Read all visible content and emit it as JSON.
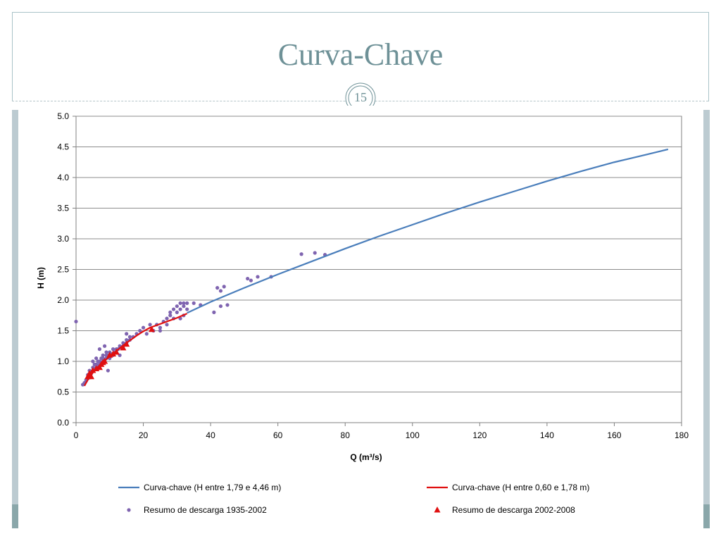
{
  "slide": {
    "title": "Curva-Chave",
    "page_number": "15",
    "accent_color": "#6e9197"
  },
  "chart_data": {
    "type": "scatter",
    "xlabel": "Q (m³/s)",
    "ylabel": "H (m)",
    "xlim": [
      0,
      180
    ],
    "ylim": [
      0,
      5
    ],
    "x_ticks": [
      "0",
      "20",
      "40",
      "60",
      "80",
      "100",
      "120",
      "140",
      "160",
      "180"
    ],
    "y_ticks": [
      "0.0",
      "0.5",
      "1.0",
      "1.5",
      "2.0",
      "2.5",
      "3.0",
      "3.5",
      "4.0",
      "4.5",
      "5.0"
    ],
    "grid": "horizontal",
    "legend_position": "bottom",
    "series": [
      {
        "name": "Curva-chave (H entre 1,79 e 4,46 m)",
        "kind": "line",
        "color": "#4a7ebb",
        "x": [
          33,
          40,
          50,
          60,
          70,
          80,
          90,
          100,
          110,
          120,
          130,
          140,
          150,
          160,
          170,
          176
        ],
        "y": [
          1.79,
          1.97,
          2.2,
          2.42,
          2.63,
          2.84,
          3.04,
          3.23,
          3.42,
          3.6,
          3.77,
          3.94,
          4.1,
          4.25,
          4.38,
          4.46
        ]
      },
      {
        "name": "Curva-chave (H entre 0,60 e 1,78 m)",
        "kind": "line",
        "color": "#e01010",
        "x": [
          2.5,
          4,
          6,
          8,
          10,
          12,
          14,
          16,
          18,
          20,
          22,
          26,
          30,
          33
        ],
        "y": [
          0.6,
          0.75,
          0.88,
          0.99,
          1.08,
          1.17,
          1.26,
          1.34,
          1.42,
          1.49,
          1.55,
          1.63,
          1.71,
          1.78
        ]
      },
      {
        "name": "Resumo de descarga 1935-2002",
        "kind": "scatter",
        "color": "#7f64b0",
        "x": [
          0,
          2,
          2.5,
          3,
          3,
          3.5,
          3.5,
          4,
          4,
          4,
          4.5,
          5,
          5,
          5,
          5.5,
          5.5,
          6,
          6,
          6,
          6.5,
          6.5,
          7,
          7,
          7,
          7.5,
          7.5,
          8,
          8,
          8,
          8.5,
          8.5,
          9,
          9,
          9,
          9.5,
          9.5,
          10,
          10,
          10,
          10.5,
          11,
          11,
          11.5,
          12,
          12,
          12.5,
          13,
          13,
          13.5,
          14,
          14,
          14.5,
          15,
          15,
          15,
          16,
          16,
          17,
          18,
          19,
          20,
          21,
          22,
          23,
          24,
          25,
          25,
          26,
          27,
          27,
          28,
          28,
          29,
          29,
          30,
          30,
          31,
          31,
          31,
          32,
          32,
          32,
          33,
          33,
          35,
          37,
          41,
          42,
          43,
          43,
          44,
          45,
          51,
          52,
          54,
          58,
          67,
          71,
          74
        ],
        "y": [
          1.65,
          0.62,
          0.65,
          0.68,
          0.7,
          0.72,
          0.78,
          0.75,
          0.8,
          0.85,
          0.8,
          0.85,
          0.9,
          1.0,
          0.88,
          0.95,
          0.9,
          0.95,
          1.05,
          0.92,
          1.0,
          0.95,
          1.0,
          1.2,
          0.98,
          1.05,
          1.0,
          1.05,
          1.1,
          1.02,
          1.25,
          1.05,
          1.1,
          1.15,
          0.85,
          1.1,
          1.05,
          1.1,
          1.15,
          1.12,
          1.1,
          1.2,
          1.15,
          1.15,
          1.2,
          1.2,
          1.1,
          1.25,
          1.22,
          1.25,
          1.3,
          1.28,
          1.3,
          1.35,
          1.45,
          1.35,
          1.4,
          1.4,
          1.45,
          1.5,
          1.55,
          1.45,
          1.6,
          1.5,
          1.6,
          1.55,
          1.5,
          1.65,
          1.7,
          1.6,
          1.75,
          1.8,
          1.85,
          1.7,
          1.8,
          1.9,
          1.7,
          1.85,
          1.95,
          1.75,
          1.9,
          1.95,
          1.85,
          1.95,
          1.95,
          1.92,
          1.8,
          2.2,
          2.15,
          1.9,
          2.22,
          1.92,
          2.35,
          2.32,
          2.38,
          2.38,
          2.75,
          2.77,
          2.74
        ]
      },
      {
        "name": "Resumo de descarga 2002-2008",
        "kind": "scatter-triangle",
        "color": "#e01010",
        "x": [
          3.5,
          4,
          4.5,
          5,
          6,
          7,
          7.5,
          8,
          8.5,
          10,
          11,
          12,
          14,
          15,
          22.5
        ],
        "y": [
          0.75,
          0.8,
          0.75,
          0.85,
          0.88,
          0.9,
          0.95,
          0.98,
          1.0,
          1.1,
          1.12,
          1.15,
          1.22,
          1.28,
          1.52
        ]
      }
    ]
  }
}
